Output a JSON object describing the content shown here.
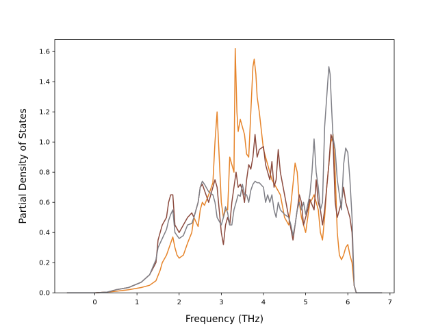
{
  "chart_data": {
    "type": "line",
    "title": "",
    "xlabel": "Frequency (THz)",
    "ylabel": "Partial Density of States",
    "xlim": [
      -0.95,
      7.1
    ],
    "ylim": [
      0.0,
      1.68
    ],
    "xticks": [
      0,
      1,
      2,
      3,
      4,
      5,
      6,
      7
    ],
    "xtick_labels": [
      "0",
      "1",
      "2",
      "3",
      "4",
      "5",
      "6",
      "7"
    ],
    "yticks": [
      0.0,
      0.2,
      0.4,
      0.6,
      0.8,
      1.0,
      1.2,
      1.4,
      1.6
    ],
    "ytick_labels": [
      "0.0",
      "0.2",
      "0.4",
      "0.6",
      "0.8",
      "1.0",
      "1.2",
      "1.4",
      "1.6"
    ],
    "grid": false,
    "legend": "none",
    "series": [
      {
        "color": "#e6842a",
        "points": [
          [
            -0.65,
            0
          ],
          [
            0,
            0.0
          ],
          [
            0.3,
            0.005
          ],
          [
            0.5,
            0.01
          ],
          [
            0.8,
            0.02
          ],
          [
            1.1,
            0.035
          ],
          [
            1.3,
            0.05
          ],
          [
            1.45,
            0.08
          ],
          [
            1.55,
            0.15
          ],
          [
            1.6,
            0.2
          ],
          [
            1.7,
            0.25
          ],
          [
            1.8,
            0.33
          ],
          [
            1.85,
            0.37
          ],
          [
            1.9,
            0.3
          ],
          [
            1.95,
            0.25
          ],
          [
            2.0,
            0.23
          ],
          [
            2.1,
            0.25
          ],
          [
            2.2,
            0.33
          ],
          [
            2.3,
            0.4
          ],
          [
            2.35,
            0.5
          ],
          [
            2.4,
            0.47
          ],
          [
            2.45,
            0.44
          ],
          [
            2.5,
            0.55
          ],
          [
            2.55,
            0.6
          ],
          [
            2.6,
            0.58
          ],
          [
            2.7,
            0.65
          ],
          [
            2.8,
            0.73
          ],
          [
            2.85,
            1.0
          ],
          [
            2.9,
            1.2
          ],
          [
            2.95,
            0.9
          ],
          [
            3.0,
            0.6
          ],
          [
            3.05,
            0.5
          ],
          [
            3.1,
            0.55
          ],
          [
            3.15,
            0.55
          ],
          [
            3.2,
            0.9
          ],
          [
            3.25,
            0.85
          ],
          [
            3.3,
            0.8
          ],
          [
            3.33,
            1.62
          ],
          [
            3.37,
            1.2
          ],
          [
            3.4,
            1.07
          ],
          [
            3.45,
            1.15
          ],
          [
            3.5,
            1.1
          ],
          [
            3.55,
            1.05
          ],
          [
            3.6,
            0.92
          ],
          [
            3.65,
            0.9
          ],
          [
            3.7,
            1.2
          ],
          [
            3.75,
            1.5
          ],
          [
            3.78,
            1.55
          ],
          [
            3.82,
            1.45
          ],
          [
            3.85,
            1.3
          ],
          [
            3.9,
            1.2
          ],
          [
            4.0,
            0.95
          ],
          [
            4.1,
            0.85
          ],
          [
            4.2,
            0.75
          ],
          [
            4.3,
            0.7
          ],
          [
            4.4,
            0.65
          ],
          [
            4.5,
            0.5
          ],
          [
            4.6,
            0.45
          ],
          [
            4.7,
            0.72
          ],
          [
            4.75,
            0.86
          ],
          [
            4.8,
            0.8
          ],
          [
            4.85,
            0.6
          ],
          [
            4.9,
            0.5
          ],
          [
            4.95,
            0.45
          ],
          [
            5.0,
            0.4
          ],
          [
            5.05,
            0.5
          ],
          [
            5.1,
            0.6
          ],
          [
            5.15,
            0.62
          ],
          [
            5.2,
            0.65
          ],
          [
            5.25,
            0.6
          ],
          [
            5.3,
            0.55
          ],
          [
            5.35,
            0.4
          ],
          [
            5.4,
            0.35
          ],
          [
            5.45,
            0.5
          ],
          [
            5.5,
            0.7
          ],
          [
            5.55,
            0.85
          ],
          [
            5.6,
            1.0
          ],
          [
            5.65,
            1.05
          ],
          [
            5.7,
            0.8
          ],
          [
            5.75,
            0.4
          ],
          [
            5.8,
            0.25
          ],
          [
            5.85,
            0.22
          ],
          [
            5.9,
            0.25
          ],
          [
            5.95,
            0.3
          ],
          [
            6.0,
            0.32
          ],
          [
            6.05,
            0.25
          ],
          [
            6.1,
            0.2
          ],
          [
            6.15,
            0.05
          ],
          [
            6.2,
            0
          ],
          [
            6.8,
            0
          ]
        ]
      },
      {
        "color": "#8b4a3e",
        "points": [
          [
            -0.65,
            0
          ],
          [
            0,
            0.0
          ],
          [
            0.3,
            0.005
          ],
          [
            0.5,
            0.02
          ],
          [
            0.8,
            0.035
          ],
          [
            1.1,
            0.07
          ],
          [
            1.3,
            0.12
          ],
          [
            1.45,
            0.2
          ],
          [
            1.5,
            0.35
          ],
          [
            1.6,
            0.45
          ],
          [
            1.7,
            0.5
          ],
          [
            1.75,
            0.6
          ],
          [
            1.8,
            0.65
          ],
          [
            1.85,
            0.65
          ],
          [
            1.9,
            0.45
          ],
          [
            2.0,
            0.4
          ],
          [
            2.1,
            0.45
          ],
          [
            2.2,
            0.5
          ],
          [
            2.3,
            0.53
          ],
          [
            2.35,
            0.5
          ],
          [
            2.4,
            0.55
          ],
          [
            2.45,
            0.6
          ],
          [
            2.5,
            0.7
          ],
          [
            2.55,
            0.72
          ],
          [
            2.6,
            0.68
          ],
          [
            2.7,
            0.6
          ],
          [
            2.8,
            0.7
          ],
          [
            2.85,
            0.75
          ],
          [
            2.9,
            0.7
          ],
          [
            3.0,
            0.4
          ],
          [
            3.05,
            0.32
          ],
          [
            3.1,
            0.45
          ],
          [
            3.15,
            0.5
          ],
          [
            3.2,
            0.45
          ],
          [
            3.25,
            0.6
          ],
          [
            3.3,
            0.7
          ],
          [
            3.35,
            0.8
          ],
          [
            3.4,
            0.7
          ],
          [
            3.45,
            0.72
          ],
          [
            3.5,
            0.68
          ],
          [
            3.55,
            0.6
          ],
          [
            3.6,
            0.75
          ],
          [
            3.65,
            0.85
          ],
          [
            3.7,
            0.82
          ],
          [
            3.75,
            0.9
          ],
          [
            3.8,
            1.05
          ],
          [
            3.85,
            0.9
          ],
          [
            3.9,
            0.95
          ],
          [
            4.0,
            0.97
          ],
          [
            4.05,
            0.85
          ],
          [
            4.1,
            0.8
          ],
          [
            4.15,
            0.75
          ],
          [
            4.2,
            0.87
          ],
          [
            4.25,
            0.7
          ],
          [
            4.3,
            0.75
          ],
          [
            4.35,
            0.95
          ],
          [
            4.4,
            0.8
          ],
          [
            4.5,
            0.65
          ],
          [
            4.6,
            0.5
          ],
          [
            4.7,
            0.35
          ],
          [
            4.75,
            0.45
          ],
          [
            4.8,
            0.55
          ],
          [
            4.85,
            0.65
          ],
          [
            4.9,
            0.6
          ],
          [
            4.95,
            0.45
          ],
          [
            5.0,
            0.5
          ],
          [
            5.05,
            0.55
          ],
          [
            5.1,
            0.62
          ],
          [
            5.2,
            0.55
          ],
          [
            5.25,
            0.75
          ],
          [
            5.3,
            0.6
          ],
          [
            5.35,
            0.55
          ],
          [
            5.4,
            0.45
          ],
          [
            5.45,
            0.55
          ],
          [
            5.5,
            0.7
          ],
          [
            5.55,
            0.85
          ],
          [
            5.6,
            1.05
          ],
          [
            5.65,
            1.0
          ],
          [
            5.7,
            0.6
          ],
          [
            5.75,
            0.5
          ],
          [
            5.8,
            0.55
          ],
          [
            5.85,
            0.6
          ],
          [
            5.9,
            0.7
          ],
          [
            5.95,
            0.6
          ],
          [
            6.0,
            0.55
          ],
          [
            6.05,
            0.5
          ],
          [
            6.1,
            0.4
          ],
          [
            6.15,
            0.05
          ],
          [
            6.2,
            0
          ],
          [
            6.8,
            0
          ]
        ]
      },
      {
        "color": "#7f7f86",
        "points": [
          [
            -0.65,
            0
          ],
          [
            0,
            0.0
          ],
          [
            0.3,
            0.005
          ],
          [
            0.5,
            0.02
          ],
          [
            0.8,
            0.035
          ],
          [
            1.1,
            0.07
          ],
          [
            1.3,
            0.12
          ],
          [
            1.45,
            0.22
          ],
          [
            1.5,
            0.3
          ],
          [
            1.6,
            0.36
          ],
          [
            1.7,
            0.42
          ],
          [
            1.75,
            0.48
          ],
          [
            1.8,
            0.52
          ],
          [
            1.85,
            0.55
          ],
          [
            1.9,
            0.4
          ],
          [
            2.0,
            0.36
          ],
          [
            2.1,
            0.38
          ],
          [
            2.2,
            0.45
          ],
          [
            2.3,
            0.46
          ],
          [
            2.35,
            0.5
          ],
          [
            2.4,
            0.55
          ],
          [
            2.45,
            0.6
          ],
          [
            2.5,
            0.7
          ],
          [
            2.55,
            0.74
          ],
          [
            2.6,
            0.72
          ],
          [
            2.7,
            0.67
          ],
          [
            2.8,
            0.65
          ],
          [
            2.85,
            0.6
          ],
          [
            2.9,
            0.5
          ],
          [
            3.0,
            0.45
          ],
          [
            3.05,
            0.5
          ],
          [
            3.1,
            0.57
          ],
          [
            3.15,
            0.53
          ],
          [
            3.2,
            0.45
          ],
          [
            3.25,
            0.45
          ],
          [
            3.3,
            0.55
          ],
          [
            3.35,
            0.6
          ],
          [
            3.4,
            0.65
          ],
          [
            3.45,
            0.64
          ],
          [
            3.5,
            0.72
          ],
          [
            3.55,
            0.65
          ],
          [
            3.6,
            0.65
          ],
          [
            3.65,
            0.6
          ],
          [
            3.7,
            0.68
          ],
          [
            3.75,
            0.72
          ],
          [
            3.8,
            0.74
          ],
          [
            3.85,
            0.73
          ],
          [
            3.9,
            0.73
          ],
          [
            4.0,
            0.7
          ],
          [
            4.05,
            0.6
          ],
          [
            4.1,
            0.65
          ],
          [
            4.15,
            0.6
          ],
          [
            4.2,
            0.65
          ],
          [
            4.25,
            0.55
          ],
          [
            4.3,
            0.5
          ],
          [
            4.35,
            0.6
          ],
          [
            4.4,
            0.55
          ],
          [
            4.5,
            0.52
          ],
          [
            4.6,
            0.5
          ],
          [
            4.65,
            0.45
          ],
          [
            4.7,
            0.38
          ],
          [
            4.75,
            0.45
          ],
          [
            4.8,
            0.55
          ],
          [
            4.85,
            0.6
          ],
          [
            4.9,
            0.55
          ],
          [
            4.95,
            0.6
          ],
          [
            5.0,
            0.52
          ],
          [
            5.1,
            0.65
          ],
          [
            5.15,
            0.8
          ],
          [
            5.2,
            1.02
          ],
          [
            5.25,
            0.8
          ],
          [
            5.3,
            0.7
          ],
          [
            5.35,
            0.55
          ],
          [
            5.4,
            0.6
          ],
          [
            5.45,
            1.1
          ],
          [
            5.5,
            1.3
          ],
          [
            5.55,
            1.5
          ],
          [
            5.58,
            1.45
          ],
          [
            5.62,
            1.2
          ],
          [
            5.65,
            1.03
          ],
          [
            5.7,
            0.95
          ],
          [
            5.75,
            0.75
          ],
          [
            5.8,
            0.65
          ],
          [
            5.85,
            0.55
          ],
          [
            5.9,
            0.85
          ],
          [
            5.95,
            0.96
          ],
          [
            6.0,
            0.93
          ],
          [
            6.05,
            0.75
          ],
          [
            6.1,
            0.5
          ],
          [
            6.15,
            0.05
          ],
          [
            6.2,
            0
          ],
          [
            6.8,
            0
          ]
        ]
      }
    ]
  }
}
